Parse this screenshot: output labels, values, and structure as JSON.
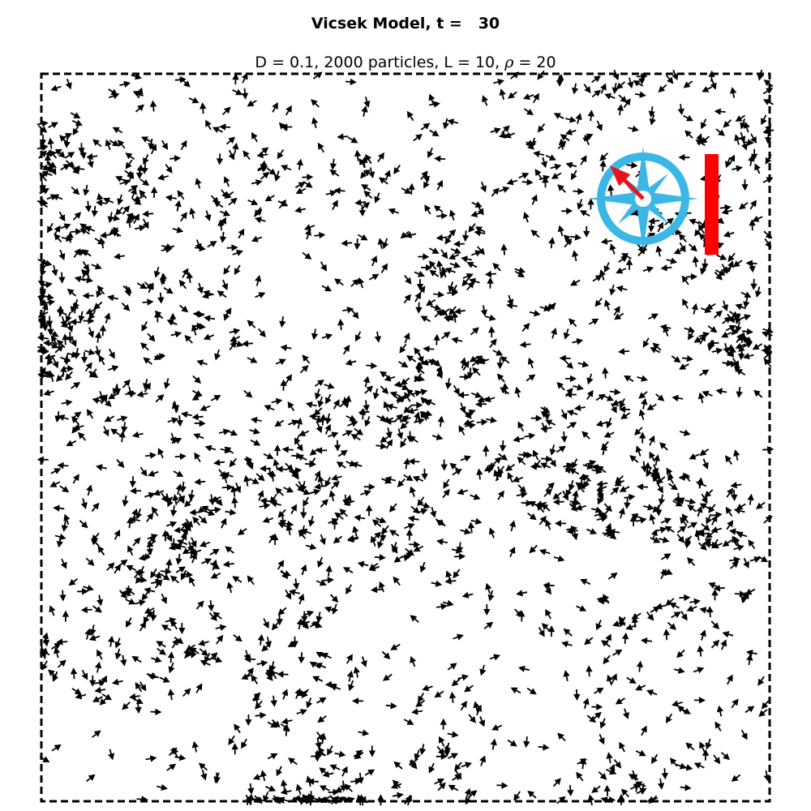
{
  "title": "Vicsek Model, t =   30",
  "subtitle": {
    "prefix": "D = 0.1, 2000 particles, L = 10, ",
    "rho_symbol": "ρ",
    "suffix": " = 20"
  },
  "colors": {
    "particle": "#000000",
    "compass": "#3bb7e6",
    "compass_needle": "#e8141b",
    "order_bar": "#ff0000",
    "frame": "#000000"
  },
  "chart_data": {
    "type": "quiver",
    "title": "Vicsek Model, t =   30",
    "subtitle": "D = 0.1, 2000 particles, L = 10, ρ = 20",
    "xlim": [
      0,
      10
    ],
    "ylim": [
      0,
      10
    ],
    "n_particles": 2000,
    "box_size": 10,
    "noise_D": 0.1,
    "density_rho": 20,
    "time_step": 30,
    "frame": "dashed",
    "grid": false,
    "mean_heading_deg": 135,
    "order_parameter": 1.0,
    "sample_particles": [
      {
        "x": 0.2,
        "y": 9.8,
        "angle": 200
      },
      {
        "x": 1.0,
        "y": 9.7,
        "angle": 20
      },
      {
        "x": 3.4,
        "y": 9.5,
        "angle": 60
      },
      {
        "x": 0.1,
        "y": 6.3,
        "angle": 180
      },
      {
        "x": 9.6,
        "y": 6.8,
        "angle": 160
      },
      {
        "x": 4.5,
        "y": 4.0,
        "angle": 90
      },
      {
        "x": 8.5,
        "y": 4.3,
        "angle": 300
      },
      {
        "x": 2.0,
        "y": 1.5,
        "angle": 45
      },
      {
        "x": 7.8,
        "y": 0.6,
        "angle": 100
      },
      {
        "x": 5.2,
        "y": 7.1,
        "angle": 270
      }
    ]
  }
}
